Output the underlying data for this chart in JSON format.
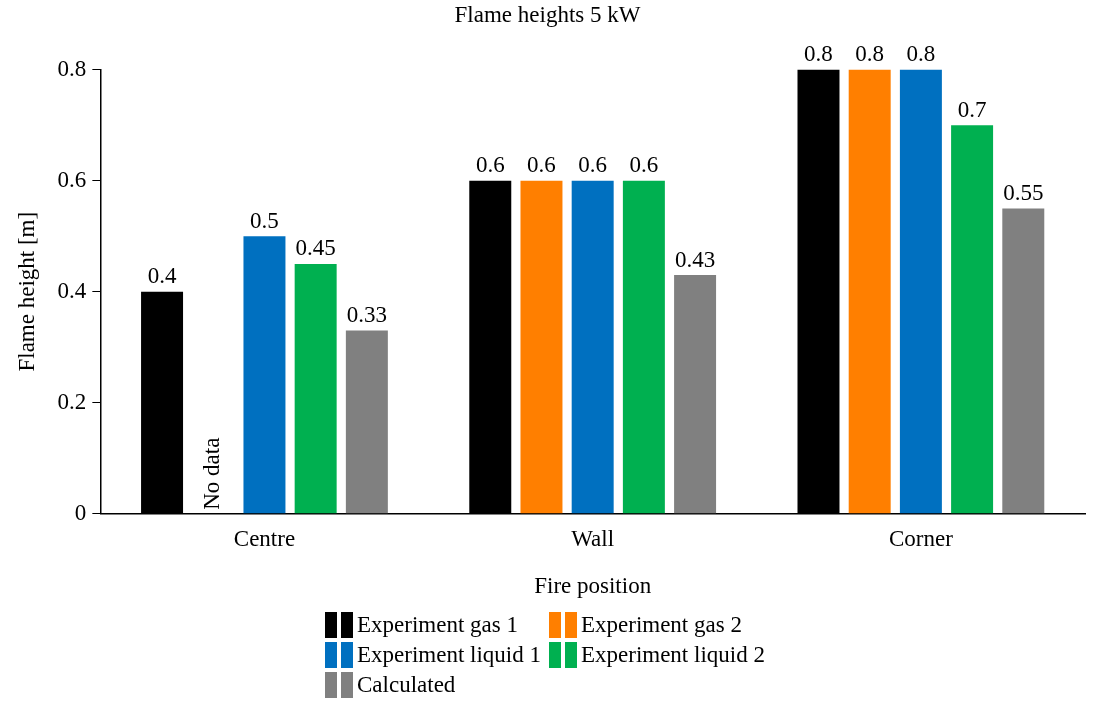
{
  "chart_data": {
    "type": "bar",
    "title": "Flame heights 5 kW",
    "xlabel": "Fire position",
    "ylabel": "Flame height [m]",
    "categories": [
      "Centre",
      "Wall",
      "Corner"
    ],
    "series": [
      {
        "name": "Experiment gas 1",
        "color": "#000000",
        "values": [
          0.4,
          0.6,
          0.8
        ]
      },
      {
        "name": "Experiment gas 2",
        "color": "#ff7f00",
        "values": [
          null,
          0.6,
          0.8
        ]
      },
      {
        "name": "Experiment liquid 1",
        "color": "#0070c0",
        "values": [
          0.5,
          0.6,
          0.8
        ]
      },
      {
        "name": "Experiment liquid 2",
        "color": "#00b050",
        "values": [
          0.45,
          0.6,
          0.7
        ]
      },
      {
        "name": "Calculated",
        "color": "#808080",
        "values": [
          0.33,
          0.43,
          0.55
        ]
      }
    ],
    "ylim": [
      0,
      0.8
    ],
    "yticks": [
      0,
      0.2,
      0.4,
      0.6,
      0.8
    ],
    "grid": false,
    "legend": "bottom",
    "data_labels": true,
    "annotations": [
      {
        "text": "No data",
        "x": "Centre",
        "y": 0
      }
    ]
  }
}
